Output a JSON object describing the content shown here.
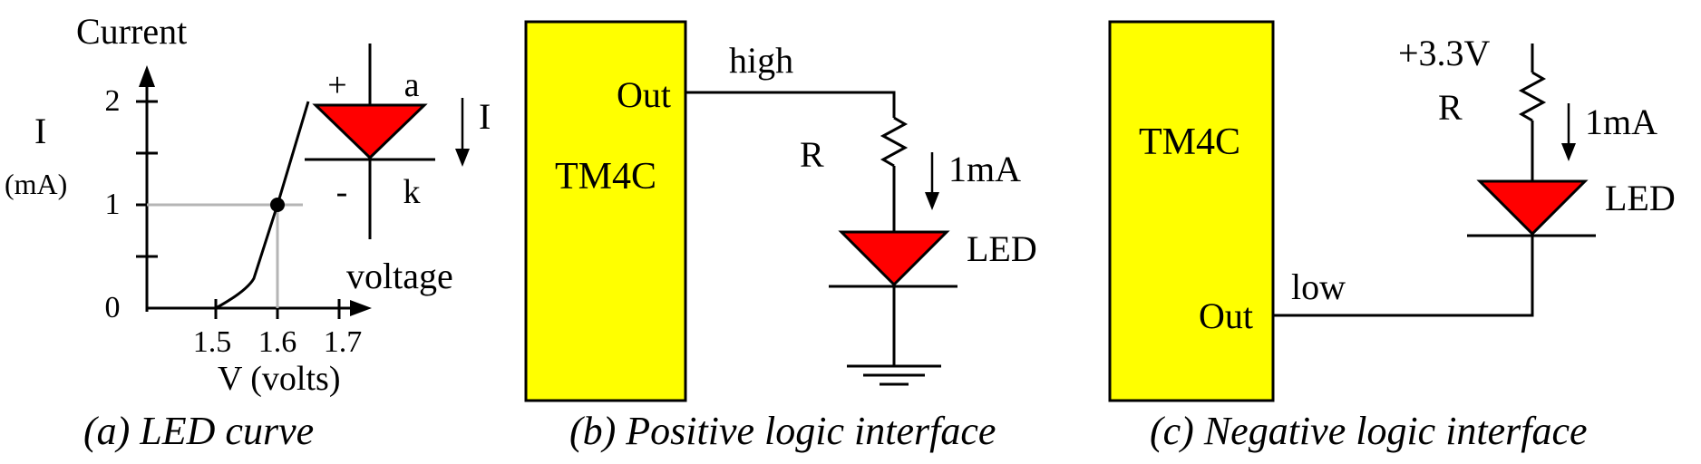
{
  "panel_a": {
    "y_title": "Current",
    "y_label": "I",
    "y_unit": "(mA)",
    "y_ticks": [
      "2",
      "1",
      "0"
    ],
    "x_title": "voltage",
    "x_ticks": [
      "1.5",
      "1.6",
      "1.7"
    ],
    "x_label": "V (volts)",
    "symbol_plus": "+",
    "symbol_anode": "a",
    "symbol_minus": "-",
    "symbol_cathode": "k",
    "current_label": "I",
    "caption": "(a) LED curve"
  },
  "panel_b": {
    "chip_label": "TM4C",
    "out_label": "Out",
    "level_label": "high",
    "resistor_label": "R",
    "current_label": "1mA",
    "led_label": "LED",
    "caption": "(b) Positive logic interface"
  },
  "panel_c": {
    "chip_label": "TM4C",
    "out_label": "Out",
    "level_label": "low",
    "supply_label": "+3.3V",
    "resistor_label": "R",
    "current_label": "1mA",
    "led_label": "LED",
    "caption": "(c) Negative logic interface"
  },
  "colors": {
    "chip_fill": "#ffff00",
    "led_fill": "#ff0000",
    "grid": "#b5b5b5",
    "ink": "#000000"
  },
  "chart_data": {
    "type": "line",
    "title": "Current",
    "xlabel": "V (volts)",
    "ylabel": "I (mA)",
    "x_ticks": [
      1.5,
      1.6,
      1.7
    ],
    "y_ticks": [
      0,
      1,
      2
    ],
    "xlim": [
      1.4,
      1.75
    ],
    "ylim": [
      0,
      2.2
    ],
    "series": [
      {
        "x": [
          1.5,
          1.55,
          1.6,
          1.65
        ],
        "y": [
          0,
          0.2,
          1,
          2
        ]
      }
    ],
    "marked_point": {
      "x": 1.6,
      "y": 1
    }
  }
}
